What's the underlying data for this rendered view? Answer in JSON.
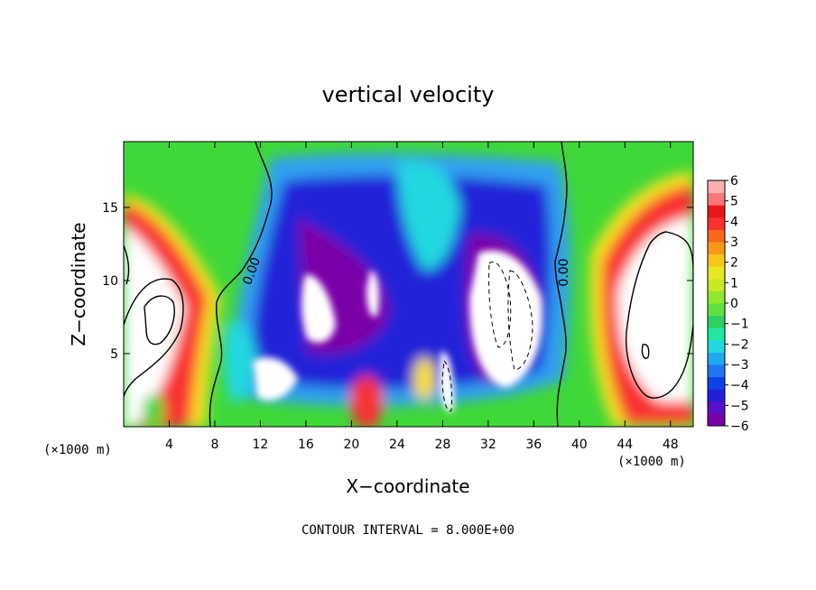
{
  "chart_data": {
    "type": "heatmap",
    "title": "vertical velocity",
    "xlabel": "X−coordinate",
    "ylabel": "Z−coordinate",
    "x_unit": "(×1000 m)",
    "y_unit": "(×1000 m)",
    "xlim": [
      0,
      50
    ],
    "ylim": [
      0,
      19.5
    ],
    "x_ticks": [
      "4",
      "8",
      "12",
      "16",
      "20",
      "24",
      "28",
      "32",
      "36",
      "40",
      "44",
      "48"
    ],
    "y_ticks": [
      "5",
      "10",
      "15"
    ],
    "colorbar": {
      "labels": [
        "6",
        "5",
        "4",
        "3",
        "2",
        "1",
        "0",
        "−1",
        "−2",
        "−3",
        "−4",
        "−5",
        "−6"
      ],
      "range": [
        -6,
        6
      ],
      "colors": [
        "#7a00a8",
        "#5a10c8",
        "#2020d8",
        "#1040e8",
        "#1e78f0",
        "#20a8f0",
        "#20d8e0",
        "#20e8a0",
        "#30d060",
        "#60e040",
        "#90e830",
        "#c8e828",
        "#e8e820",
        "#f8c818",
        "#f89818",
        "#f86818",
        "#f83030",
        "#e81818",
        "#f87878",
        "#f8b0b0"
      ]
    },
    "contour_labels": [
      "0.00",
      "0.00"
    ],
    "footer": "CONTOUR INTERVAL = 8.000E+00"
  }
}
